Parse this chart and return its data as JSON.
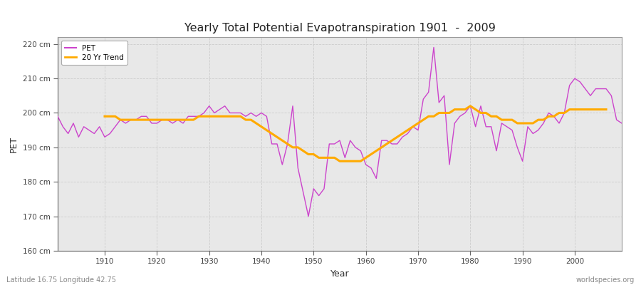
{
  "title": "Yearly Total Potential Evapotranspiration 1901  -  2009",
  "xlabel": "Year",
  "ylabel": "PET",
  "background_color": "#ffffff",
  "plot_bg_color": "#e8e8e8",
  "pet_color": "#cc44cc",
  "trend_color": "#ffaa00",
  "pet_label": "PET",
  "trend_label": "20 Yr Trend",
  "ylim": [
    160,
    222
  ],
  "yticks": [
    160,
    170,
    180,
    190,
    200,
    210,
    220
  ],
  "ytick_labels": [
    "160 cm",
    "170 cm",
    "180 cm",
    "190 cm",
    "200 cm",
    "210 cm",
    "220 cm"
  ],
  "xlim": [
    1901,
    2009
  ],
  "xticks": [
    1910,
    1920,
    1930,
    1940,
    1950,
    1960,
    1970,
    1980,
    1990,
    2000
  ],
  "footer_left": "Latitude 16.75 Longitude 42.75",
  "footer_right": "worldspecies.org",
  "years": [
    1901,
    1902,
    1903,
    1904,
    1905,
    1906,
    1907,
    1908,
    1909,
    1910,
    1911,
    1912,
    1913,
    1914,
    1915,
    1916,
    1917,
    1918,
    1919,
    1920,
    1921,
    1922,
    1923,
    1924,
    1925,
    1926,
    1927,
    1928,
    1929,
    1930,
    1931,
    1932,
    1933,
    1934,
    1935,
    1936,
    1937,
    1938,
    1939,
    1940,
    1941,
    1942,
    1943,
    1944,
    1945,
    1946,
    1947,
    1948,
    1949,
    1950,
    1951,
    1952,
    1953,
    1954,
    1955,
    1956,
    1957,
    1958,
    1959,
    1960,
    1961,
    1962,
    1963,
    1964,
    1965,
    1966,
    1967,
    1968,
    1969,
    1970,
    1971,
    1972,
    1973,
    1974,
    1975,
    1976,
    1977,
    1978,
    1979,
    1980,
    1981,
    1982,
    1983,
    1984,
    1985,
    1986,
    1987,
    1988,
    1989,
    1990,
    1991,
    1992,
    1993,
    1994,
    1995,
    1996,
    1997,
    1998,
    1999,
    2000,
    2001,
    2002,
    2003,
    2004,
    2005,
    2006,
    2007,
    2008,
    2009
  ],
  "pet_values": [
    199,
    196,
    194,
    197,
    193,
    196,
    195,
    194,
    196,
    193,
    194,
    196,
    198,
    197,
    198,
    198,
    199,
    199,
    197,
    197,
    198,
    198,
    197,
    198,
    197,
    199,
    199,
    199,
    200,
    202,
    200,
    201,
    202,
    200,
    200,
    200,
    199,
    200,
    199,
    200,
    199,
    191,
    191,
    185,
    191,
    202,
    184,
    177,
    170,
    178,
    176,
    178,
    191,
    191,
    192,
    187,
    192,
    190,
    189,
    185,
    184,
    181,
    192,
    192,
    191,
    191,
    193,
    194,
    196,
    195,
    204,
    206,
    219,
    203,
    205,
    185,
    197,
    199,
    200,
    202,
    196,
    202,
    196,
    196,
    189,
    197,
    196,
    195,
    190,
    186,
    196,
    194,
    195,
    197,
    200,
    199,
    197,
    200,
    208,
    210,
    209,
    207,
    205,
    207,
    207,
    207,
    205,
    198,
    197
  ],
  "trend_values": [
    null,
    null,
    null,
    null,
    null,
    null,
    null,
    null,
    null,
    199,
    199,
    199,
    198,
    198,
    198,
    198,
    198,
    198,
    198,
    198,
    198,
    198,
    198,
    198,
    198,
    198,
    198,
    199,
    199,
    199,
    199,
    199,
    199,
    199,
    199,
    199,
    198,
    198,
    197,
    196,
    195,
    194,
    193,
    192,
    191,
    190,
    190,
    189,
    188,
    188,
    187,
    187,
    187,
    187,
    186,
    186,
    186,
    186,
    186,
    187,
    188,
    189,
    190,
    191,
    192,
    193,
    194,
    195,
    196,
    197,
    198,
    199,
    199,
    200,
    200,
    200,
    201,
    201,
    201,
    202,
    201,
    200,
    200,
    199,
    199,
    198,
    198,
    198,
    197,
    197,
    197,
    197,
    198,
    198,
    199,
    199,
    200,
    200,
    201,
    201,
    201,
    201,
    201,
    201,
    201,
    201,
    null,
    null,
    null
  ]
}
